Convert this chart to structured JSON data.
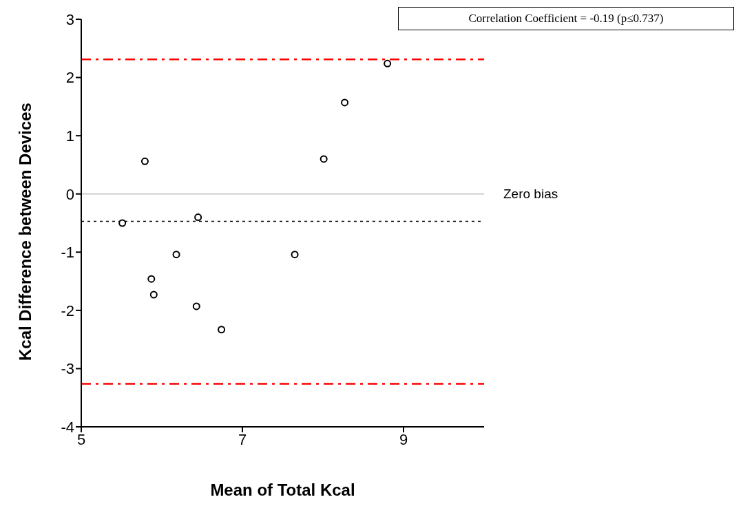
{
  "chart_data": {
    "type": "scatter",
    "xlabel": "Mean of Total Kcal",
    "ylabel": "Kcal Difference between Devices",
    "x": [
      5.51,
      5.79,
      6.45,
      6.18,
      5.87,
      5.9,
      6.43,
      6.74,
      7.65,
      8.01,
      8.27,
      8.8
    ],
    "values": [
      -0.5,
      0.56,
      -0.4,
      -1.04,
      -1.46,
      -1.73,
      -1.93,
      -2.33,
      -1.04,
      0.6,
      1.57,
      2.24
    ],
    "color": "#000000",
    "marker": "circle",
    "xlim": [
      5,
      10
    ],
    "xticks": [
      5,
      7,
      9
    ],
    "ylim": [
      -4,
      3
    ],
    "yticks": [
      -4,
      -3,
      -2,
      -1,
      0,
      1,
      2,
      3
    ],
    "ref_lines": [
      {
        "axis": "y",
        "value": 0,
        "label": "Zero bias",
        "color": "#c0c0c0",
        "line_style": "solid"
      },
      {
        "axis": "y",
        "value": 2.31,
        "label": null,
        "color": "#ff0000",
        "line_style": "dashed"
      },
      {
        "axis": "y",
        "value": -3.26,
        "label": null,
        "color": "#ff0000",
        "line_style": "dashed"
      },
      {
        "axis": "y",
        "value": -0.47,
        "label": null,
        "color": "#000000",
        "line_style": "dotted"
      }
    ],
    "annotations": [
      "Correlation Coefficient = -0.19 (p≤0.737)"
    ]
  }
}
